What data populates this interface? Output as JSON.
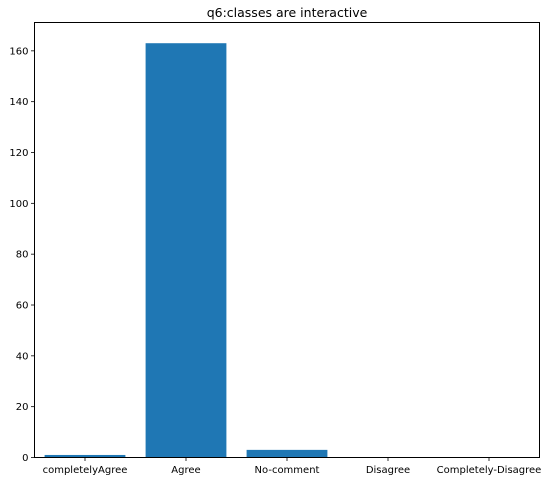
{
  "chart_data": {
    "type": "bar",
    "title": "q6:classes are interactive",
    "xlabel": "",
    "ylabel": "",
    "categories": [
      "completelyAgree",
      "Agree",
      "No-comment",
      "Disagree",
      "Completely-Disagree"
    ],
    "values": [
      1,
      163,
      3,
      0,
      0
    ],
    "ylim": [
      0,
      171.15
    ],
    "yticks": [
      0,
      20,
      40,
      60,
      80,
      100,
      120,
      140,
      160
    ],
    "grid": false,
    "legend": "none",
    "bar_color": "#1f77b4"
  }
}
